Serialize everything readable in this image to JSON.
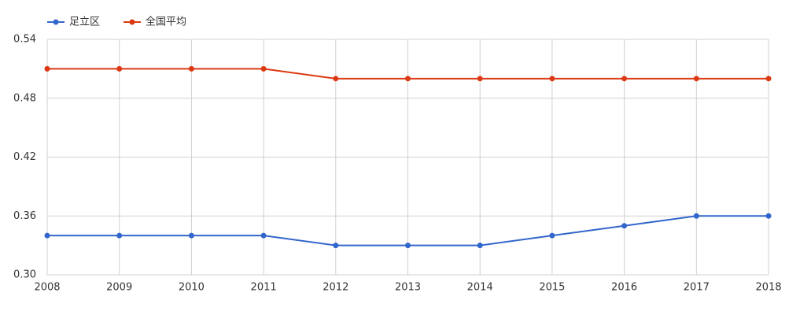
{
  "chart_data": {
    "type": "line",
    "x": [
      2008,
      2009,
      2010,
      2011,
      2012,
      2013,
      2014,
      2015,
      2016,
      2017,
      2018
    ],
    "series": [
      {
        "name": "足立区",
        "color": "#3366cc",
        "values": [
          0.34,
          0.34,
          0.34,
          0.34,
          0.33,
          0.33,
          0.33,
          0.34,
          0.35,
          0.36,
          0.36
        ]
      },
      {
        "name": "全国平均",
        "color": "#dc3912",
        "values": [
          0.51,
          0.51,
          0.51,
          0.51,
          0.5,
          0.5,
          0.5,
          0.5,
          0.5,
          0.5,
          0.5
        ]
      }
    ],
    "xlim": [
      2008,
      2018
    ],
    "xticks": [
      2008,
      2009,
      2010,
      2011,
      2012,
      2013,
      2014,
      2015,
      2016,
      2017,
      2018
    ],
    "ylim": [
      0.3,
      0.54
    ],
    "yticks": [
      {
        "value": 0.3,
        "label": "0.30"
      },
      0.36,
      0.42,
      0.48,
      0.54
    ],
    "grid": true,
    "legend": "top-left"
  }
}
